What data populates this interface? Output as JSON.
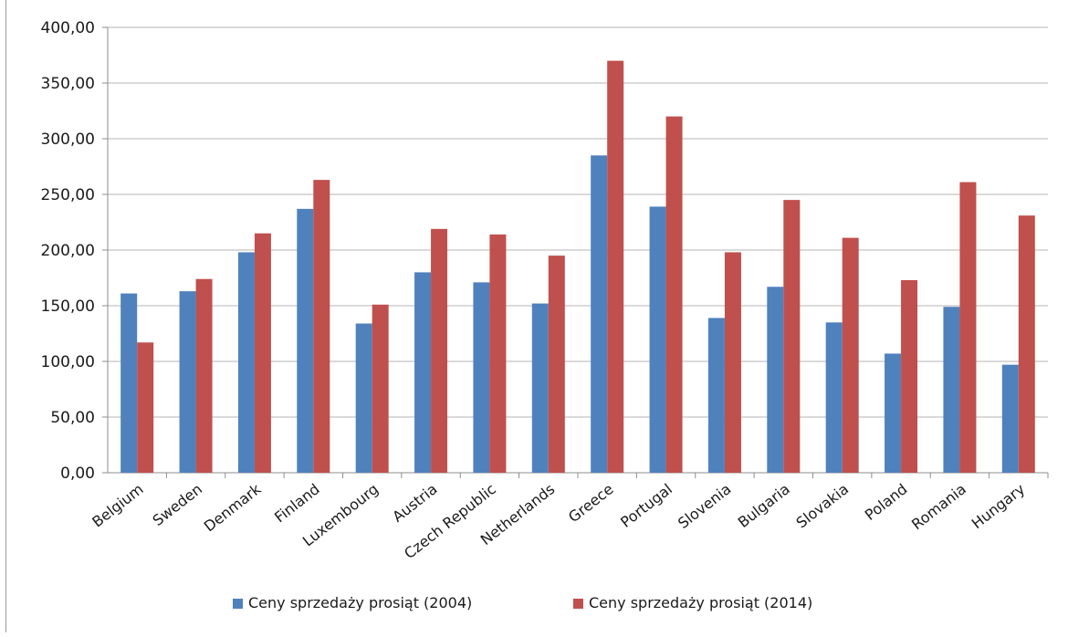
{
  "chart_data": {
    "type": "bar",
    "title": "",
    "xlabel": "",
    "ylabel": "",
    "ylim": [
      0,
      400
    ],
    "ytick_values": [
      0,
      50,
      100,
      150,
      200,
      250,
      300,
      350,
      400
    ],
    "ytick_labels": [
      "0,00",
      "50,00",
      "100,00",
      "150,00",
      "200,00",
      "250,00",
      "300,00",
      "350,00",
      "400,00"
    ],
    "grid": true,
    "legend_position": "bottom",
    "categories": [
      "Belgium",
      "Sweden",
      "Denmark",
      "Finland",
      "Luxembourg",
      "Austria",
      "Czech Republic",
      "Netherlands",
      "Greece",
      "Portugal",
      "Slovenia",
      "Bulgaria",
      "Slovakia",
      "Poland",
      "Romania",
      "Hungary"
    ],
    "series": [
      {
        "name": "Ceny sprzedaży prosiąt (2004)",
        "color": "#4f81bd",
        "values": [
          161,
          163,
          198,
          237,
          134,
          180,
          171,
          152,
          285,
          239,
          139,
          167,
          135,
          107,
          149,
          97
        ]
      },
      {
        "name": "Ceny sprzedaży prosiąt (2014)",
        "color": "#c0504d",
        "values": [
          117,
          174,
          215,
          263,
          151,
          219,
          214,
          195,
          370,
          320,
          198,
          245,
          211,
          173,
          261,
          231
        ]
      }
    ]
  }
}
